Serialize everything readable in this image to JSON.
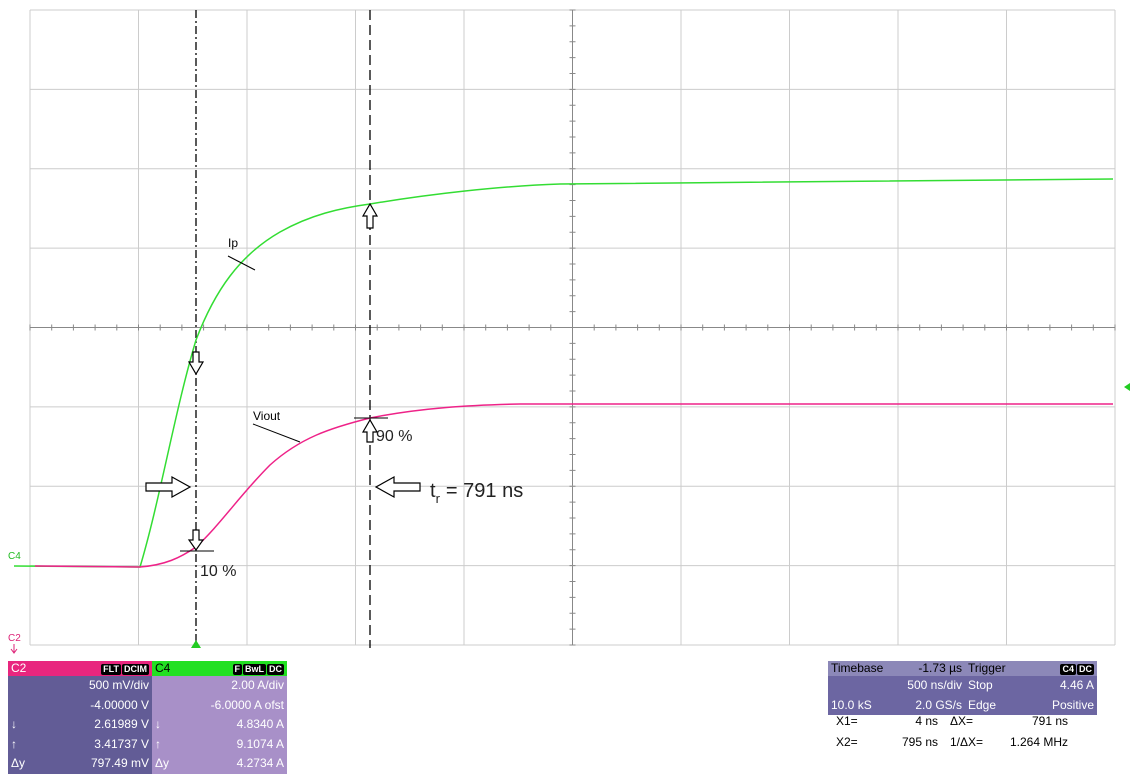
{
  "traces": {
    "ip": "Ip",
    "viout": "Viout"
  },
  "cursors": {
    "label_10": "10 %",
    "label_90": "90 %",
    "rise_prefix": "t",
    "rise_sub": "r",
    "rise_value": "= 791 ns"
  },
  "channel_markers": {
    "c4": "C4",
    "c2": "C2"
  },
  "channels": [
    {
      "name": "C2",
      "badges": [
        "FLT",
        "DCIM"
      ],
      "rows": [
        {
          "right": "500 mV/div"
        },
        {
          "right": "-4.00000 V"
        },
        {
          "left": "↓",
          "right": "2.61989 V"
        },
        {
          "left": "↑",
          "right": "3.41737 V"
        },
        {
          "left": "Δy",
          "right": "797.49 mV"
        }
      ]
    },
    {
      "name": "C4",
      "badges": [
        "F",
        "BwL",
        "DC"
      ],
      "rows": [
        {
          "right": "2.00 A/div"
        },
        {
          "right": "-6.0000 A ofst"
        },
        {
          "left": "↓",
          "right": "4.8340 A"
        },
        {
          "left": "↑",
          "right": "9.1074 A"
        },
        {
          "left": "Δy",
          "right": "4.2734 A"
        }
      ]
    }
  ],
  "timebase": {
    "name": "Timebase",
    "value": "-1.73 µs",
    "rows": [
      {
        "right": "500 ns/div"
      },
      {
        "left": "10.0 kS",
        "right": "2.0 GS/s"
      }
    ]
  },
  "trigger": {
    "name": "Trigger",
    "badges": [
      "C4",
      "DC"
    ],
    "rows": [
      {
        "left": "Stop",
        "right": "4.46 A"
      },
      {
        "left": "Edge",
        "right": "Positive"
      }
    ]
  },
  "measurements": [
    [
      "X1=",
      "4 ns",
      "ΔX=",
      "791 ns"
    ],
    [
      "X2=",
      "795 ns",
      "1/ΔX=",
      "1.264 MHz"
    ]
  ]
}
